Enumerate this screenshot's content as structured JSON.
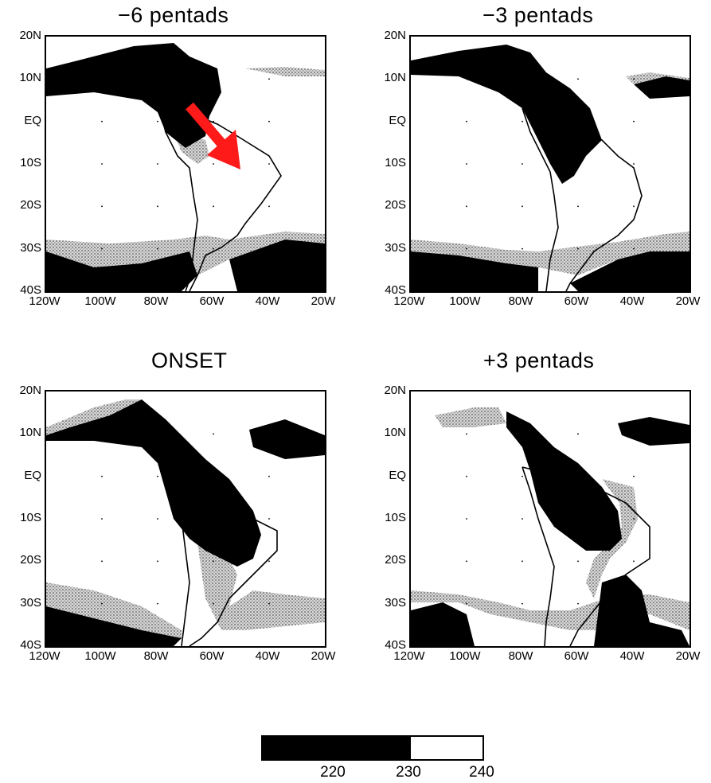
{
  "panels": [
    {
      "title": "−6 pentads"
    },
    {
      "title": "−3 pentads"
    },
    {
      "title": "ONSET"
    },
    {
      "title": "+3 pentads"
    }
  ],
  "axes": {
    "lat_labels": [
      "20N",
      "10N",
      "EQ",
      "10S",
      "20S",
      "30S",
      "40S"
    ],
    "lon_labels": [
      "120W",
      "100W",
      "80W",
      "60W",
      "40W",
      "20W"
    ]
  },
  "legend": {
    "labels": [
      "220",
      "230",
      "240"
    ],
    "colors": {
      "below_230": "#000000",
      "230_to_240": "#ffffff",
      "stipple": "#bdbdbd"
    }
  },
  "annotation": {
    "arrow_color": "#ff1a1a",
    "arrow_icon": "arrow-down-right-icon"
  }
}
